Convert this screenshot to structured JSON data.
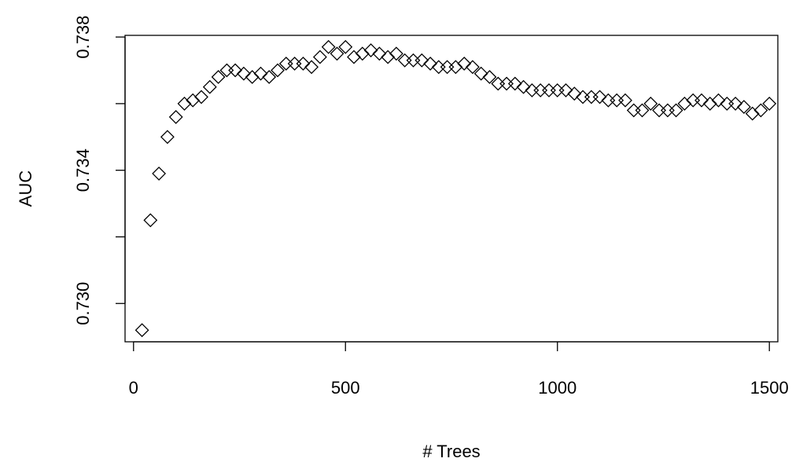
{
  "chart_data": {
    "type": "scatter",
    "title": "",
    "xlabel": "# Trees",
    "ylabel": "AUC",
    "xlim": [
      -20,
      1520
    ],
    "ylim": [
      0.72885,
      0.73805
    ],
    "x_ticks": [
      0,
      500,
      1000,
      1500
    ],
    "x_tick_labels": [
      "0",
      "500",
      "1000",
      "1500"
    ],
    "y_ticks": [
      0.73,
      0.732,
      0.734,
      0.736,
      0.738
    ],
    "y_tick_labels": [
      "0.730",
      "",
      "0.734",
      "",
      "0.738"
    ],
    "marker": "open-diamond",
    "grid": false,
    "legend": "none",
    "series": [
      {
        "x": [
          20,
          40,
          60,
          80,
          100,
          120,
          140,
          160,
          180,
          200,
          220,
          240,
          260,
          280,
          300,
          320,
          340,
          360,
          380,
          400,
          420,
          440,
          460,
          480,
          500,
          520,
          540,
          560,
          580,
          600,
          620,
          640,
          660,
          680,
          700,
          720,
          740,
          760,
          780,
          800,
          820,
          840,
          860,
          880,
          900,
          920,
          940,
          960,
          980,
          1000,
          1020,
          1040,
          1060,
          1080,
          1100,
          1120,
          1140,
          1160,
          1180,
          1200,
          1220,
          1240,
          1260,
          1280,
          1300,
          1320,
          1340,
          1360,
          1380,
          1400,
          1420,
          1440,
          1460,
          1480,
          1500
        ],
        "y": [
          0.7292,
          0.7325,
          0.7339,
          0.735,
          0.7356,
          0.736,
          0.7361,
          0.7362,
          0.7365,
          0.7368,
          0.737,
          0.737,
          0.7369,
          0.7368,
          0.7369,
          0.7368,
          0.737,
          0.7372,
          0.7372,
          0.7372,
          0.7371,
          0.7374,
          0.7377,
          0.7375,
          0.7377,
          0.7374,
          0.7375,
          0.7376,
          0.7375,
          0.7374,
          0.7375,
          0.7373,
          0.7373,
          0.7373,
          0.7372,
          0.7371,
          0.7371,
          0.7371,
          0.7372,
          0.7371,
          0.7369,
          0.7368,
          0.7366,
          0.7366,
          0.7366,
          0.7365,
          0.7364,
          0.7364,
          0.7364,
          0.7364,
          0.7364,
          0.7363,
          0.7362,
          0.7362,
          0.7362,
          0.7361,
          0.7361,
          0.7361,
          0.7358,
          0.7358,
          0.736,
          0.7358,
          0.7358,
          0.7358,
          0.736,
          0.7361,
          0.7361,
          0.736,
          0.7361,
          0.736,
          0.736,
          0.7359,
          0.7357,
          0.7358,
          0.736
        ]
      }
    ]
  }
}
